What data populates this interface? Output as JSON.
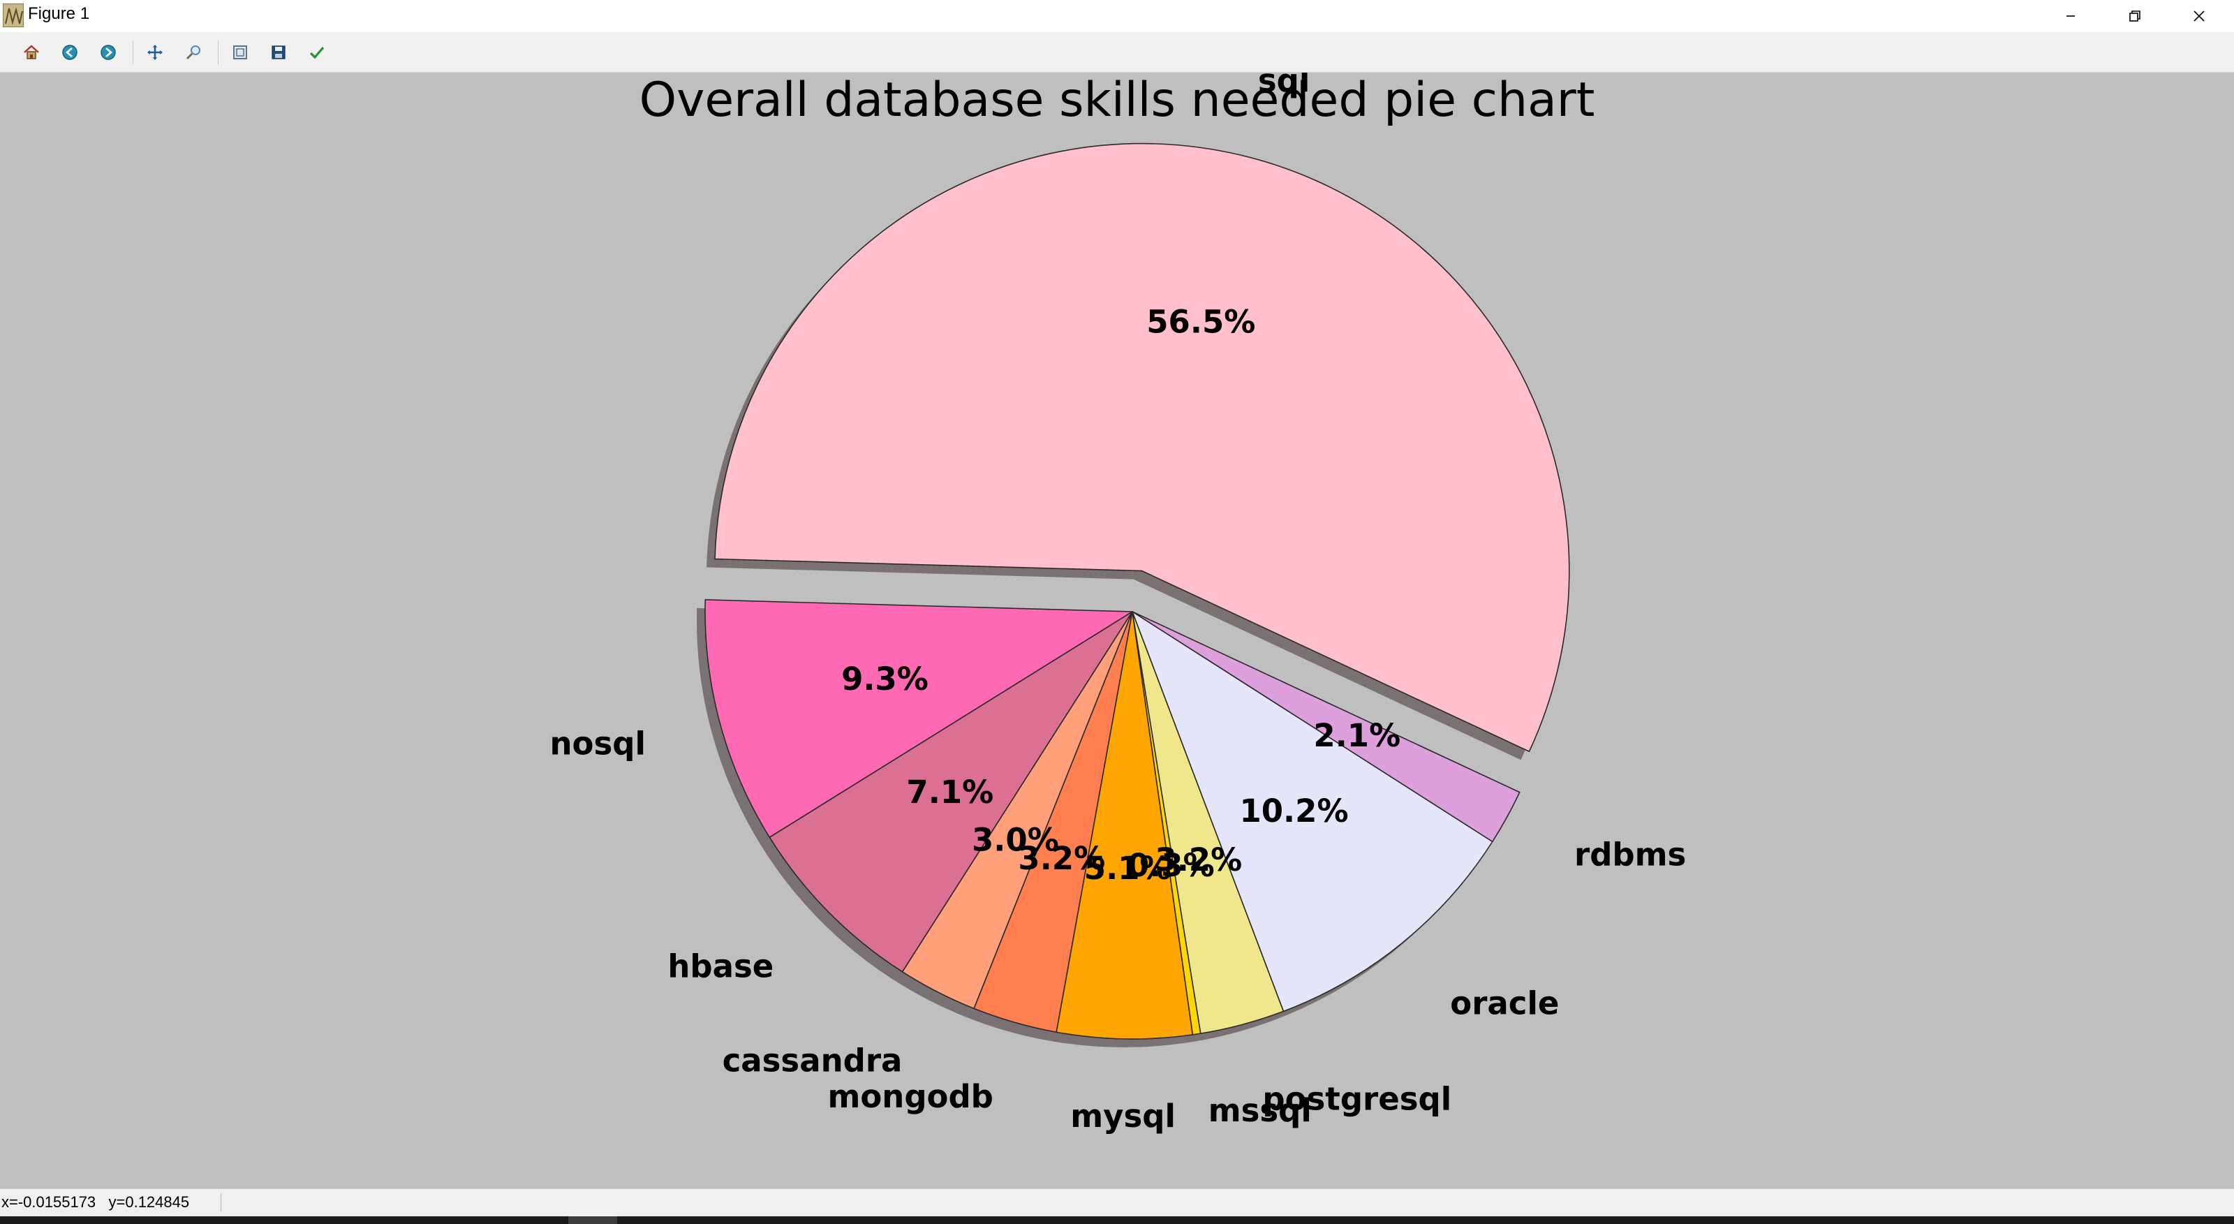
{
  "window": {
    "title": "Figure 1",
    "controls": [
      "minimize-icon",
      "restore-icon",
      "close-icon"
    ]
  },
  "toolbar": {
    "tools": [
      {
        "name": "home",
        "icon": "home-icon"
      },
      {
        "name": "back",
        "icon": "back-arrow-icon"
      },
      {
        "name": "forward",
        "icon": "forward-arrow-icon"
      },
      {
        "name": "pan",
        "icon": "move-icon"
      },
      {
        "name": "zoom",
        "icon": "zoom-icon"
      },
      {
        "name": "configure-subplots",
        "icon": "subplots-icon"
      },
      {
        "name": "save",
        "icon": "save-icon"
      },
      {
        "name": "edit-parameters",
        "icon": "check-icon"
      }
    ]
  },
  "status": {
    "coords": "x=-0.0155173   y=0.124845"
  },
  "chart_data": {
    "type": "pie",
    "title": "Overall database skills needed pie chart",
    "start_angle_deg": -25,
    "direction": "counterclockwise",
    "shadow": true,
    "slices": [
      {
        "label": "sql",
        "percent": 56.5,
        "color": "#ffc0cb",
        "explode": true
      },
      {
        "label": "nosql",
        "percent": 9.3,
        "color": "#ff69b4",
        "explode": false
      },
      {
        "label": "hbase",
        "percent": 7.1,
        "color": "#db7093",
        "explode": false
      },
      {
        "label": "cassandra",
        "percent": 3.0,
        "color": "#ffa07a",
        "explode": false
      },
      {
        "label": "mongodb",
        "percent": 3.2,
        "color": "#ff7f50",
        "explode": false
      },
      {
        "label": "mysql",
        "percent": 5.1,
        "color": "#ffa500",
        "explode": false
      },
      {
        "label": "mssql",
        "percent": 0.3,
        "color": "#ffd700",
        "explode": false
      },
      {
        "label": "postgresql",
        "percent": 3.2,
        "color": "#f0e68c",
        "explode": false
      },
      {
        "label": "oracle",
        "percent": 10.2,
        "color": "#e6e6fa",
        "explode": false
      },
      {
        "label": "rdbms",
        "percent": 2.1,
        "color": "#dda0dd",
        "explode": false
      }
    ],
    "pct_labels": [
      "56.5%",
      "9.3%",
      "7.1%",
      "3.0%",
      "3.2%",
      "5.1%",
      "0.3%",
      "3.2%",
      "10.2%",
      "2.1%"
    ]
  }
}
